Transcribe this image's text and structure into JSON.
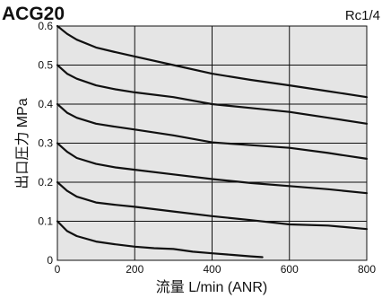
{
  "chart_data": {
    "type": "line",
    "title": "ACG20",
    "subtitle": "Rc1/4",
    "xlabel": "流量 L/min (ANR)",
    "ylabel": "出口圧力 MPa",
    "xlim": [
      0,
      800
    ],
    "ylim": [
      0,
      0.6
    ],
    "x_ticks": [
      0,
      200,
      400,
      600,
      800
    ],
    "x_tick_labels": [
      "0",
      "200",
      "400",
      "600",
      "800"
    ],
    "y_ticks": [
      0,
      0.1,
      0.2,
      0.3,
      0.4,
      0.5,
      0.6
    ],
    "y_tick_labels": [
      "0",
      "0.1",
      "0.2",
      "0.3",
      "0.4",
      "0.5",
      "0.6"
    ],
    "grid": true,
    "series": [
      {
        "x": [
          0,
          25,
          50,
          100,
          150,
          200,
          300,
          400,
          500,
          600,
          700,
          800
        ],
        "y": [
          0.6,
          0.58,
          0.565,
          0.545,
          0.533,
          0.522,
          0.5,
          0.478,
          0.462,
          0.448,
          0.433,
          0.418
        ]
      },
      {
        "x": [
          0,
          25,
          50,
          100,
          150,
          200,
          300,
          400,
          500,
          600,
          700,
          800
        ],
        "y": [
          0.5,
          0.478,
          0.465,
          0.448,
          0.438,
          0.43,
          0.418,
          0.4,
          0.39,
          0.38,
          0.365,
          0.35
        ]
      },
      {
        "x": [
          0,
          25,
          50,
          100,
          150,
          200,
          300,
          400,
          500,
          600,
          700,
          800
        ],
        "y": [
          0.4,
          0.378,
          0.365,
          0.35,
          0.342,
          0.335,
          0.32,
          0.302,
          0.295,
          0.288,
          0.275,
          0.26
        ]
      },
      {
        "x": [
          0,
          25,
          50,
          100,
          150,
          200,
          300,
          400,
          500,
          600,
          700,
          800
        ],
        "y": [
          0.3,
          0.278,
          0.262,
          0.247,
          0.238,
          0.232,
          0.22,
          0.208,
          0.198,
          0.19,
          0.182,
          0.172
        ]
      },
      {
        "x": [
          0,
          25,
          50,
          100,
          150,
          200,
          300,
          400,
          500,
          600,
          700,
          800
        ],
        "y": [
          0.2,
          0.178,
          0.163,
          0.148,
          0.142,
          0.137,
          0.125,
          0.113,
          0.103,
          0.092,
          0.089,
          0.08
        ]
      },
      {
        "x": [
          0,
          25,
          50,
          100,
          150,
          200,
          250,
          300,
          350,
          400,
          450,
          500,
          530
        ],
        "y": [
          0.1,
          0.075,
          0.062,
          0.048,
          0.041,
          0.035,
          0.031,
          0.029,
          0.022,
          0.018,
          0.014,
          0.01,
          0.008
        ]
      }
    ]
  },
  "colors": {
    "plot_background": "#e5e5e5",
    "grid": "#111111",
    "curve": "#111111",
    "frame": "#111111",
    "text": "#111111"
  }
}
